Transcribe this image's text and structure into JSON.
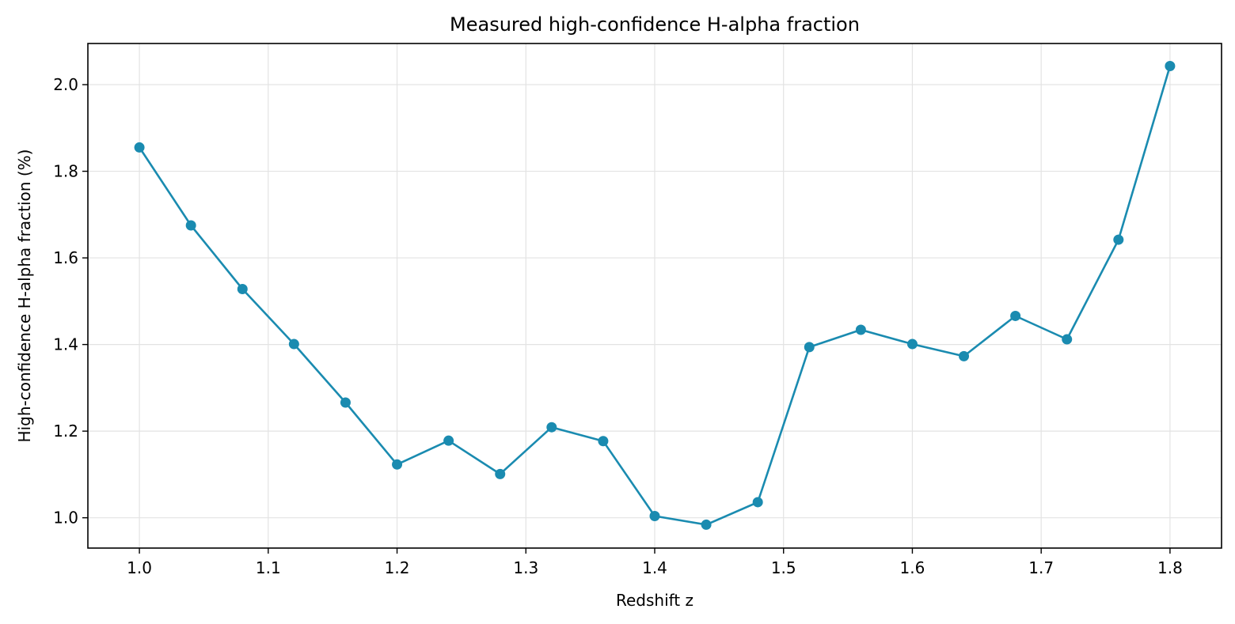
{
  "chart_data": {
    "type": "line",
    "title": "Measured high-confidence H-alpha fraction",
    "xlabel": "Redshift z",
    "ylabel": "High-confidence H-alpha fraction (%)",
    "xlim": [
      0.96,
      1.84
    ],
    "ylim": [
      0.93,
      2.095
    ],
    "xticks": [
      1.0,
      1.1,
      1.2,
      1.3,
      1.4,
      1.5,
      1.6,
      1.7,
      1.8
    ],
    "xtick_labels": [
      "1.0",
      "1.1",
      "1.2",
      "1.3",
      "1.4",
      "1.5",
      "1.6",
      "1.7",
      "1.8"
    ],
    "yticks": [
      1.0,
      1.2,
      1.4,
      1.6,
      1.8,
      2.0
    ],
    "ytick_labels": [
      "1.0",
      "1.2",
      "1.4",
      "1.6",
      "1.8",
      "2.0"
    ],
    "grid": true,
    "line_color": "#1a8bb0",
    "series": [
      {
        "x": [
          1.0,
          1.04,
          1.08,
          1.12,
          1.16,
          1.2,
          1.24,
          1.28,
          1.32,
          1.36,
          1.4,
          1.44,
          1.48,
          1.52,
          1.56,
          1.6,
          1.64,
          1.68,
          1.72,
          1.76,
          1.8
        ],
        "values": [
          1.855,
          1.675,
          1.528,
          1.401,
          1.266,
          1.123,
          1.178,
          1.101,
          1.209,
          1.177,
          1.004,
          0.984,
          1.036,
          1.394,
          1.434,
          1.401,
          1.373,
          1.466,
          1.412,
          1.642,
          2.043
        ]
      }
    ]
  }
}
